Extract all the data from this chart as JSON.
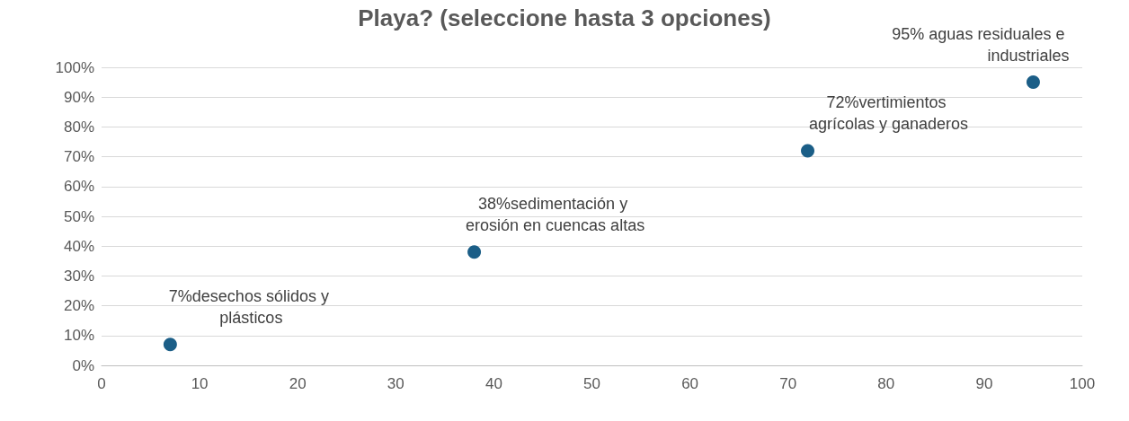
{
  "chart_data": {
    "type": "scatter",
    "title": "Playa? (seleccione hasta 3 opciones)",
    "x": [
      7,
      38,
      72,
      95
    ],
    "series": [
      {
        "color": "#1b5e87",
        "values": [
          7,
          38,
          72,
          95
        ]
      }
    ],
    "xlim": [
      0,
      100
    ],
    "xticks": [
      0,
      10,
      20,
      30,
      40,
      50,
      60,
      70,
      80,
      90,
      100
    ],
    "ylim": [
      0,
      100
    ],
    "yticks": [
      {
        "value": 0,
        "label": "0%"
      },
      {
        "value": 10,
        "label": "10%"
      },
      {
        "value": 20,
        "label": "20%"
      },
      {
        "value": 30,
        "label": "30%"
      },
      {
        "value": 40,
        "label": "40%"
      },
      {
        "value": 50,
        "label": "50%"
      },
      {
        "value": 60,
        "label": "60%"
      },
      {
        "value": 70,
        "label": "70%"
      },
      {
        "value": 80,
        "label": "80%"
      },
      {
        "value": 90,
        "label": "90%"
      },
      {
        "value": 100,
        "label": "100%"
      }
    ],
    "grid": "y",
    "marker": "circle",
    "annotations": [
      {
        "text": "7%desechos sólidos y plásticos",
        "x": 7,
        "y": 7
      },
      {
        "text": "38%sedimentación y erosión en cuencas altas",
        "x": 38,
        "y": 38
      },
      {
        "text": "72%vertimientos agrícolas y ganaderos",
        "x": 72,
        "y": 72
      },
      {
        "text": "95% aguas residuales e industriales",
        "x": 95,
        "y": 95
      }
    ]
  }
}
